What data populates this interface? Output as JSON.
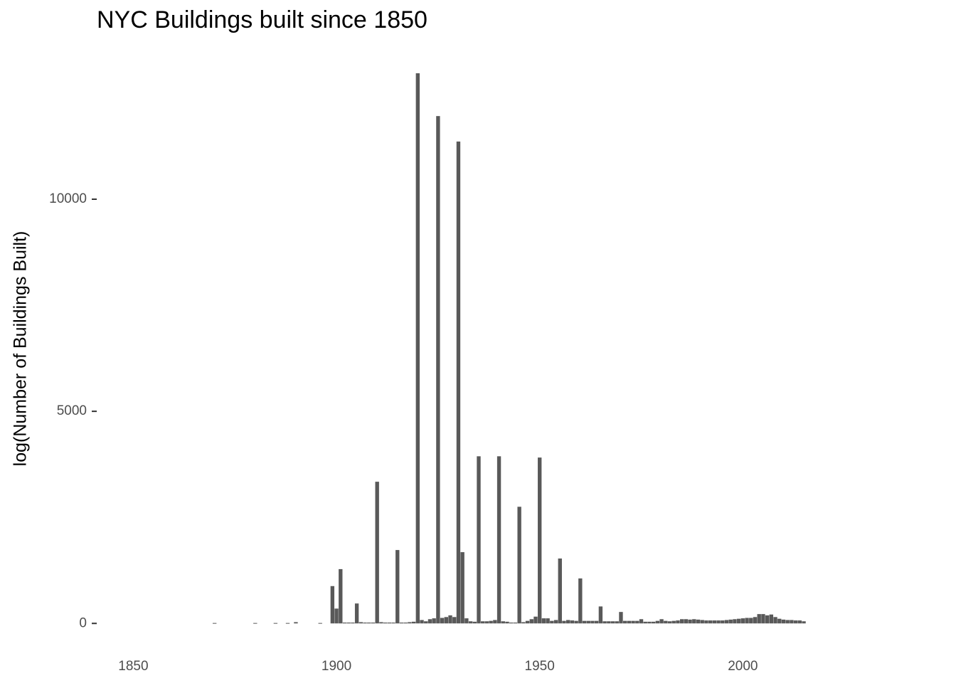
{
  "chart_data": {
    "type": "bar",
    "title": "NYC Buildings built since 1850",
    "y_label": "log(Number of Buildings Built)",
    "color": "#595959",
    "x": [
      1870,
      1880,
      1885,
      1888,
      1890,
      1896,
      1899,
      1900,
      1901,
      1902,
      1903,
      1904,
      1905,
      1906,
      1907,
      1908,
      1909,
      1910,
      1911,
      1912,
      1913,
      1914,
      1915,
      1916,
      1917,
      1918,
      1919,
      1920,
      1921,
      1922,
      1923,
      1924,
      1925,
      1926,
      1927,
      1928,
      1929,
      1930,
      1931,
      1932,
      1933,
      1934,
      1935,
      1936,
      1937,
      1938,
      1939,
      1940,
      1941,
      1942,
      1943,
      1944,
      1945,
      1946,
      1947,
      1948,
      1949,
      1950,
      1951,
      1952,
      1953,
      1954,
      1955,
      1956,
      1957,
      1958,
      1959,
      1960,
      1961,
      1962,
      1963,
      1964,
      1965,
      1966,
      1967,
      1968,
      1969,
      1970,
      1971,
      1972,
      1973,
      1974,
      1975,
      1976,
      1977,
      1978,
      1979,
      1980,
      1981,
      1982,
      1983,
      1984,
      1985,
      1986,
      1987,
      1988,
      1989,
      1990,
      1991,
      1992,
      1993,
      1994,
      1995,
      1996,
      1997,
      1998,
      1999,
      2000,
      2001,
      2002,
      2003,
      2004,
      2005,
      2006,
      2007,
      2008,
      2009,
      2010,
      2011,
      2012,
      2013,
      2014,
      2015
    ],
    "values": [
      10,
      10,
      10,
      10,
      30,
      10,
      880,
      350,
      1280,
      20,
      20,
      20,
      470,
      30,
      20,
      20,
      20,
      3340,
      30,
      20,
      20,
      20,
      1730,
      20,
      20,
      30,
      40,
      12970,
      80,
      50,
      100,
      120,
      11960,
      130,
      150,
      190,
      150,
      11360,
      1680,
      120,
      50,
      40,
      3940,
      50,
      50,
      60,
      80,
      3940,
      50,
      40,
      20,
      20,
      2750,
      30,
      60,
      100,
      160,
      3910,
      120,
      120,
      60,
      80,
      1530,
      60,
      80,
      70,
      60,
      1060,
      60,
      60,
      60,
      60,
      400,
      50,
      50,
      50,
      50,
      270,
      60,
      60,
      60,
      60,
      100,
      40,
      40,
      40,
      60,
      100,
      60,
      50,
      60,
      70,
      100,
      100,
      90,
      100,
      90,
      80,
      70,
      70,
      70,
      70,
      70,
      80,
      90,
      100,
      110,
      120,
      130,
      130,
      150,
      220,
      220,
      190,
      210,
      150,
      110,
      90,
      80,
      80,
      70,
      70,
      50
    ],
    "xlim": [
      1841,
      2043
    ],
    "xticks": [
      1850,
      1900,
      1950,
      2000
    ],
    "ylim": [
      -650,
      13690
    ],
    "yticks": [
      0,
      5000,
      10000
    ],
    "grid": false
  }
}
